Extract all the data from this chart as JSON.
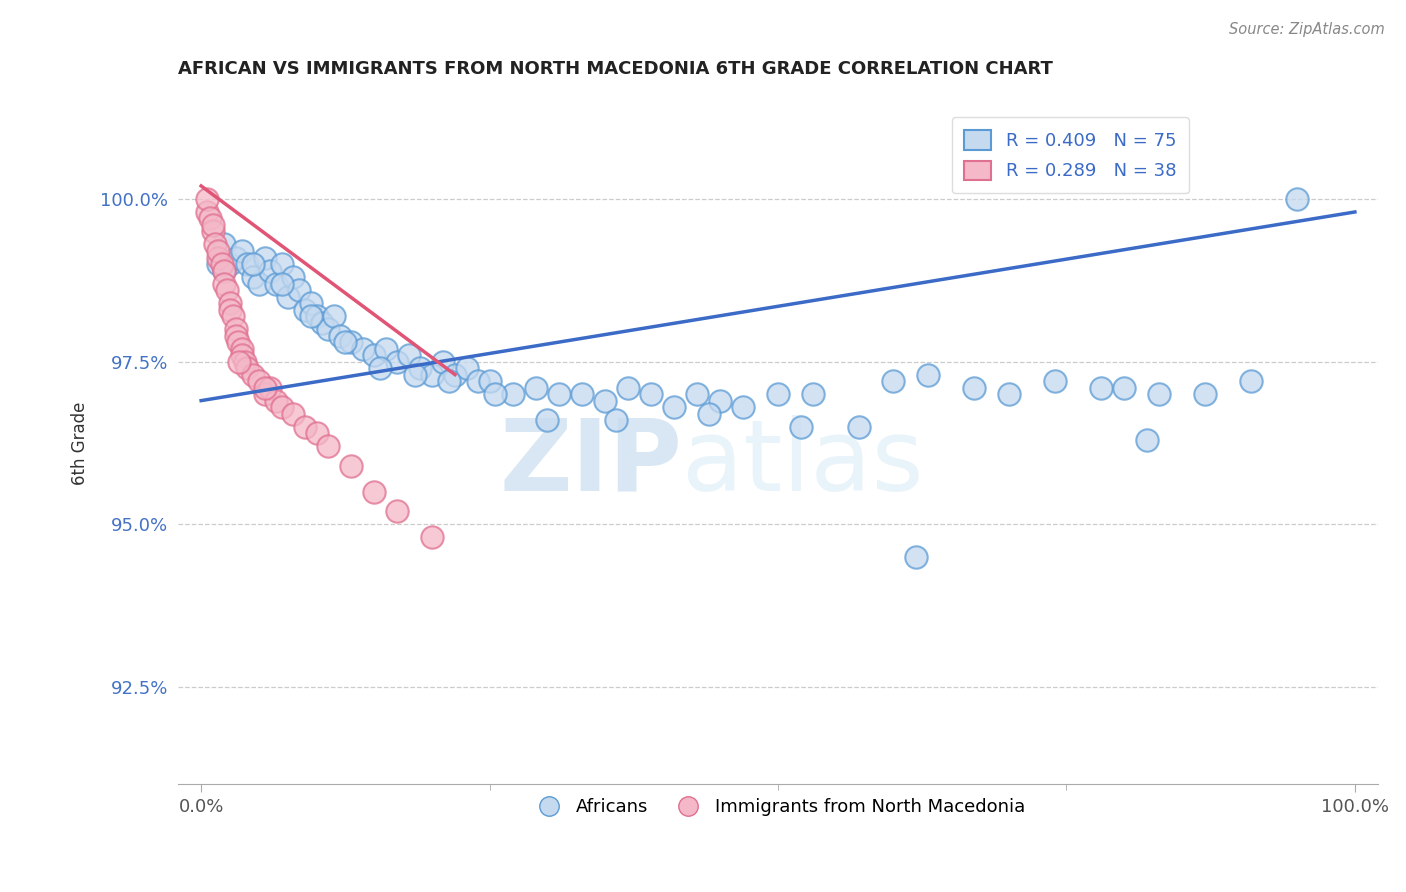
{
  "title": "AFRICAN VS IMMIGRANTS FROM NORTH MACEDONIA 6TH GRADE CORRELATION CHART",
  "source": "Source: ZipAtlas.com",
  "ylabel": "6th Grade",
  "xlabel": "",
  "xlim": [
    -2.0,
    102.0
  ],
  "ylim": [
    91.0,
    101.5
  ],
  "yticks": [
    92.5,
    95.0,
    97.5,
    100.0
  ],
  "ytick_labels": [
    "92.5%",
    "95.0%",
    "97.5%",
    "100.0%"
  ],
  "xticks": [
    0.0,
    100.0
  ],
  "xtick_labels": [
    "0.0%",
    "100.0%"
  ],
  "blue_color": "#c5d9ef",
  "blue_edge_color": "#5b9bd5",
  "pink_color": "#f4b8c8",
  "pink_edge_color": "#e07090",
  "blue_line_color": "#3b6bc7",
  "pink_line_color": "#e05575",
  "legend_r_blue": "R = 0.409",
  "legend_n_blue": "N = 75",
  "legend_r_pink": "R = 0.289",
  "legend_n_pink": "N = 38",
  "watermark_zip": "ZIP",
  "watermark_atlas": "atlas",
  "blue_scatter_x": [
    1.5,
    2.0,
    2.5,
    3.0,
    3.5,
    4.0,
    4.5,
    5.0,
    5.5,
    6.0,
    6.5,
    7.0,
    7.5,
    8.0,
    8.5,
    9.0,
    9.5,
    10.0,
    10.5,
    11.0,
    11.5,
    12.0,
    13.0,
    14.0,
    15.0,
    16.0,
    17.0,
    18.0,
    19.0,
    20.0,
    21.0,
    22.0,
    23.0,
    24.0,
    25.0,
    27.0,
    29.0,
    31.0,
    33.0,
    35.0,
    37.0,
    39.0,
    41.0,
    43.0,
    45.0,
    47.0,
    50.0,
    53.0,
    57.0,
    60.0,
    63.0,
    67.0,
    70.0,
    74.0,
    78.0,
    80.0,
    83.0,
    87.0,
    91.0,
    95.0,
    2.0,
    4.5,
    7.0,
    9.5,
    12.5,
    15.5,
    18.5,
    21.5,
    25.5,
    30.0,
    36.0,
    44.0,
    52.0,
    62.0,
    82.0
  ],
  "blue_scatter_y": [
    99.0,
    99.3,
    99.0,
    99.1,
    99.2,
    99.0,
    98.8,
    98.7,
    99.1,
    98.9,
    98.7,
    99.0,
    98.5,
    98.8,
    98.6,
    98.3,
    98.4,
    98.2,
    98.1,
    98.0,
    98.2,
    97.9,
    97.8,
    97.7,
    97.6,
    97.7,
    97.5,
    97.6,
    97.4,
    97.3,
    97.5,
    97.3,
    97.4,
    97.2,
    97.2,
    97.0,
    97.1,
    97.0,
    97.0,
    96.9,
    97.1,
    97.0,
    96.8,
    97.0,
    96.9,
    96.8,
    97.0,
    97.0,
    96.5,
    97.2,
    97.3,
    97.1,
    97.0,
    97.2,
    97.1,
    97.1,
    97.0,
    97.0,
    97.2,
    100.0,
    98.9,
    99.0,
    98.7,
    98.2,
    97.8,
    97.4,
    97.3,
    97.2,
    97.0,
    96.6,
    96.6,
    96.7,
    96.5,
    94.5,
    96.3
  ],
  "pink_scatter_x": [
    0.5,
    0.5,
    0.8,
    1.0,
    1.0,
    1.2,
    1.5,
    1.5,
    1.8,
    2.0,
    2.0,
    2.2,
    2.5,
    2.5,
    2.8,
    3.0,
    3.0,
    3.2,
    3.5,
    3.5,
    3.8,
    4.0,
    4.5,
    5.0,
    5.5,
    6.0,
    6.5,
    7.0,
    8.0,
    9.0,
    10.0,
    11.0,
    13.0,
    15.0,
    17.0,
    20.0,
    3.3,
    5.5
  ],
  "pink_scatter_y": [
    99.8,
    100.0,
    99.7,
    99.5,
    99.6,
    99.3,
    99.1,
    99.2,
    99.0,
    98.9,
    98.7,
    98.6,
    98.4,
    98.3,
    98.2,
    98.0,
    97.9,
    97.8,
    97.7,
    97.6,
    97.5,
    97.4,
    97.3,
    97.2,
    97.0,
    97.1,
    96.9,
    96.8,
    96.7,
    96.5,
    96.4,
    96.2,
    95.9,
    95.5,
    95.2,
    94.8,
    97.5,
    97.1
  ],
  "blue_trendline_x": [
    0.0,
    100.0
  ],
  "blue_trendline_y": [
    96.9,
    99.8
  ],
  "pink_trendline_x": [
    0.0,
    22.0
  ],
  "pink_trendline_y": [
    100.2,
    97.3
  ]
}
